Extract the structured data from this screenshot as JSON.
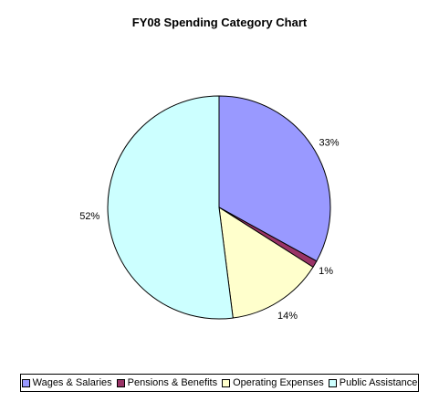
{
  "chart_data": {
    "type": "pie",
    "title": "FY08 Spending Category Chart",
    "categories": [
      "Wages & Salaries",
      "Pensions & Benefits",
      "Operating Expenses",
      "Public Assistance"
    ],
    "values": [
      33,
      1,
      14,
      52
    ],
    "labels": [
      "33%",
      "1%",
      "14%",
      "52%"
    ],
    "colors": [
      "#9999ff",
      "#993366",
      "#ffffcc",
      "#ccffff"
    ],
    "legend_position": "bottom"
  }
}
